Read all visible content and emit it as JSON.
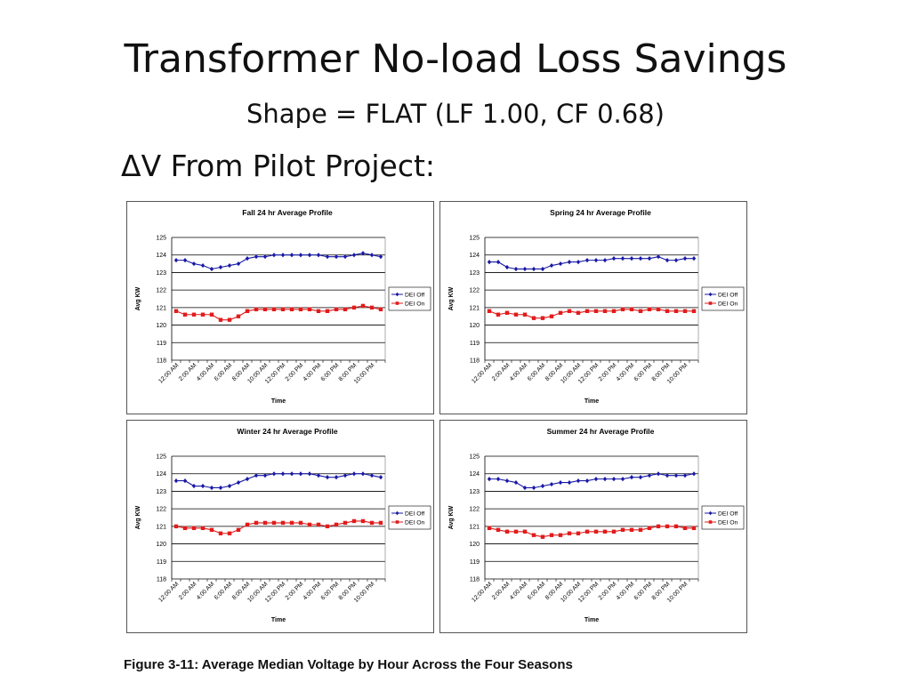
{
  "slide": {
    "title": "Transformer No-load Loss Savings",
    "subtitle": "Shape = FLAT (LF 1.00, CF 0.68)",
    "bullet": "ΔV From Pilot Project:",
    "caption": "Figure 3-11:  Average Median Voltage by Hour Across the Four Seasons"
  },
  "colors": {
    "dei_off": "#1a1aa6",
    "dei_on": "#e21b1b",
    "grid": "#000000"
  },
  "chart_data": [
    {
      "type": "line",
      "title": "Fall 24 hr Average Profile",
      "xlabel": "Time",
      "ylabel": "Avg KW",
      "ylim": [
        118,
        125
      ],
      "yticks": [
        "118",
        "119",
        "120",
        "121",
        "122",
        "123",
        "124",
        "125"
      ],
      "tick_labels": [
        "12:00 AM",
        "2:00 AM",
        "4:00 AM",
        "6:00 AM",
        "8:00 AM",
        "10:00 AM",
        "12:00 PM",
        "2:00 PM",
        "4:00 PM",
        "6:00 PM",
        "8:00 PM",
        "10:00 PM"
      ],
      "grid": true,
      "legend": "right",
      "series": [
        {
          "name": "DEI Off",
          "marker": "diamond",
          "values": [
            123.7,
            123.7,
            123.5,
            123.4,
            123.2,
            123.3,
            123.4,
            123.5,
            123.8,
            123.9,
            123.9,
            124.0,
            124.0,
            124.0,
            124.0,
            124.0,
            124.0,
            123.9,
            123.9,
            123.9,
            124.0,
            124.1,
            124.0,
            123.9
          ]
        },
        {
          "name": "DEI On",
          "marker": "square",
          "values": [
            120.8,
            120.6,
            120.6,
            120.6,
            120.6,
            120.3,
            120.3,
            120.5,
            120.8,
            120.9,
            120.9,
            120.9,
            120.9,
            120.9,
            120.9,
            120.9,
            120.8,
            120.8,
            120.9,
            120.9,
            121.0,
            121.1,
            121.0,
            120.9
          ]
        }
      ]
    },
    {
      "type": "line",
      "title": "Spring 24 hr Average Profile",
      "xlabel": "Time",
      "ylabel": "Avg KW",
      "ylim": [
        118,
        125
      ],
      "yticks": [
        "118",
        "119",
        "120",
        "121",
        "122",
        "123",
        "124",
        "125"
      ],
      "tick_labels": [
        "12:00 AM",
        "2:00 AM",
        "4:00 AM",
        "6:00 AM",
        "8:00 AM",
        "10:00 AM",
        "12:00 PM",
        "2:00 PM",
        "4:00 PM",
        "6:00 PM",
        "8:00 PM",
        "10:00 PM"
      ],
      "grid": true,
      "legend": "right",
      "series": [
        {
          "name": "DEI Off",
          "marker": "diamond",
          "values": [
            123.6,
            123.6,
            123.3,
            123.2,
            123.2,
            123.2,
            123.2,
            123.4,
            123.5,
            123.6,
            123.6,
            123.7,
            123.7,
            123.7,
            123.8,
            123.8,
            123.8,
            123.8,
            123.8,
            123.9,
            123.7,
            123.7,
            123.8,
            123.8
          ]
        },
        {
          "name": "DEI On",
          "marker": "square",
          "values": [
            120.8,
            120.6,
            120.7,
            120.6,
            120.6,
            120.4,
            120.4,
            120.5,
            120.7,
            120.8,
            120.7,
            120.8,
            120.8,
            120.8,
            120.8,
            120.9,
            120.9,
            120.8,
            120.9,
            120.9,
            120.8,
            120.8,
            120.8,
            120.8
          ]
        }
      ]
    },
    {
      "type": "line",
      "title": "Winter 24 hr Average Profile",
      "xlabel": "Time",
      "ylabel": "Avg KW",
      "ylim": [
        118,
        125
      ],
      "yticks": [
        "118",
        "119",
        "120",
        "121",
        "122",
        "123",
        "124",
        "125"
      ],
      "tick_labels": [
        "12:00 AM",
        "2:00 AM",
        "4:00 AM",
        "6:00 AM",
        "8:00 AM",
        "10:00 AM",
        "12:00 PM",
        "2:00 PM",
        "4:00 PM",
        "6:00 PM",
        "8:00 PM",
        "10:00 PM"
      ],
      "grid": true,
      "legend": "right",
      "series": [
        {
          "name": "DEI Off",
          "marker": "diamond",
          "values": [
            123.6,
            123.6,
            123.3,
            123.3,
            123.2,
            123.2,
            123.3,
            123.5,
            123.7,
            123.9,
            123.9,
            124.0,
            124.0,
            124.0,
            124.0,
            124.0,
            123.9,
            123.8,
            123.8,
            123.9,
            124.0,
            124.0,
            123.9,
            123.8
          ]
        },
        {
          "name": "DEI On",
          "marker": "square",
          "values": [
            121.0,
            120.9,
            120.9,
            120.9,
            120.8,
            120.6,
            120.6,
            120.8,
            121.1,
            121.2,
            121.2,
            121.2,
            121.2,
            121.2,
            121.2,
            121.1,
            121.1,
            121.0,
            121.1,
            121.2,
            121.3,
            121.3,
            121.2,
            121.2
          ]
        }
      ]
    },
    {
      "type": "line",
      "title": "Summer 24 hr Average Profile",
      "xlabel": "Time",
      "ylabel": "Avg KW",
      "ylim": [
        118,
        125
      ],
      "yticks": [
        "118",
        "119",
        "120",
        "121",
        "122",
        "123",
        "124",
        "125"
      ],
      "tick_labels": [
        "12:00 AM",
        "2:00 AM",
        "4:00 AM",
        "6:00 AM",
        "8:00 AM",
        "10:00 AM",
        "12:00 PM",
        "2:00 PM",
        "4:00 PM",
        "6:00 PM",
        "8:00 PM",
        "10:00 PM"
      ],
      "grid": true,
      "legend": "right",
      "series": [
        {
          "name": "DEI Off",
          "marker": "diamond",
          "values": [
            123.7,
            123.7,
            123.6,
            123.5,
            123.2,
            123.2,
            123.3,
            123.4,
            123.5,
            123.5,
            123.6,
            123.6,
            123.7,
            123.7,
            123.7,
            123.7,
            123.8,
            123.8,
            123.9,
            124.0,
            123.9,
            123.9,
            123.9,
            124.0
          ]
        },
        {
          "name": "DEI On",
          "marker": "square",
          "values": [
            120.9,
            120.8,
            120.7,
            120.7,
            120.7,
            120.5,
            120.4,
            120.5,
            120.5,
            120.6,
            120.6,
            120.7,
            120.7,
            120.7,
            120.7,
            120.8,
            120.8,
            120.8,
            120.9,
            121.0,
            121.0,
            121.0,
            120.9,
            120.9
          ]
        }
      ]
    }
  ]
}
